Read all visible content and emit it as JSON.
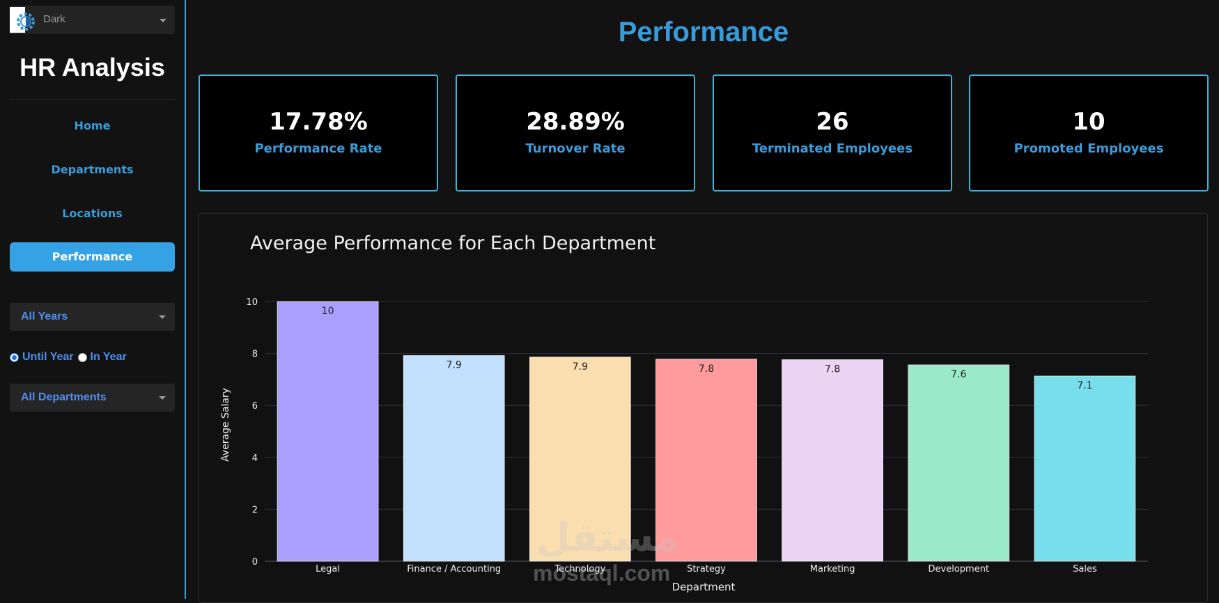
{
  "sidebar": {
    "theme_label": "Dark",
    "app_title": "HR Analysis",
    "nav": [
      "Home",
      "Departments",
      "Locations",
      "Performance"
    ],
    "active_nav": "Performance",
    "year_filter": "All Years",
    "radio_options": [
      "Until Year",
      "In Year"
    ],
    "radio_selected": "Until Year",
    "department_filter": "All Departments"
  },
  "header": {
    "title": "Performance"
  },
  "kpis": [
    {
      "value": "17.78%",
      "label": "Performance Rate"
    },
    {
      "value": "28.89%",
      "label": "Turnover Rate"
    },
    {
      "value": "26",
      "label": "Terminated Employees"
    },
    {
      "value": "10",
      "label": "Promoted Employees"
    }
  ],
  "chart_data": {
    "type": "bar",
    "title": "Average Performance for Each Department",
    "xlabel": "Department",
    "ylabel": "Average Salary",
    "categories": [
      "Legal",
      "Finance / Accounting",
      "Technology",
      "Strategy",
      "Marketing",
      "Development",
      "Sales"
    ],
    "values": [
      10,
      7.92,
      7.86,
      7.78,
      7.76,
      7.56,
      7.13
    ],
    "labels": [
      "10",
      "7.9",
      "7.9",
      "7.8",
      "7.8",
      "7.6",
      "7.1"
    ],
    "colors": [
      "#ab9ffd",
      "#c2e0ff",
      "#fbdeb0",
      "#ff9b9d",
      "#ecd4f4",
      "#9ae9c9",
      "#77dfec"
    ],
    "yticks": [
      0,
      2,
      4,
      6,
      8,
      10
    ],
    "ylim": [
      0,
      10
    ],
    "grid": true
  },
  "watermark": {
    "arabic": "مستقل",
    "latin": "mostaql.com"
  }
}
